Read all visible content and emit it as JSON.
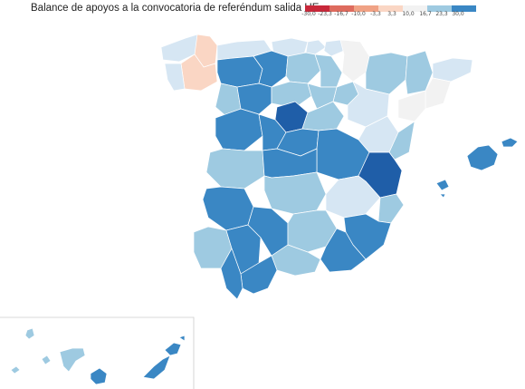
{
  "title": "Balance de apoyos a la convocatoria de referéndum salida UE",
  "legend": {
    "ticks": [
      "-30,0",
      "-23,3",
      "-16,7",
      "-10,0",
      "-3,3",
      "3,3",
      "10,0",
      "16,7",
      "23,3",
      "30,0"
    ],
    "colors": [
      "#c8283a",
      "#de6b5e",
      "#f0a285",
      "#fad6c4",
      "#f2f2f2",
      "#d6e6f3",
      "#9ecae1",
      "#6aaed6",
      "#3a87c4",
      "#1f5ea8"
    ]
  }
}
